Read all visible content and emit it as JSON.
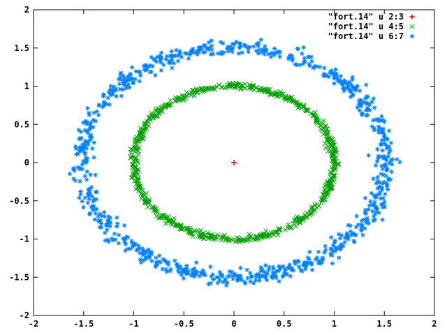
{
  "chart_data": {
    "type": "scatter",
    "xlim": [
      -2,
      2
    ],
    "ylim": [
      -2,
      2
    ],
    "grid": false,
    "legend_position": "top-right",
    "x_ticks": [
      "-2",
      "-1.5",
      "-1",
      "-0.5",
      "0",
      "0.5",
      "1",
      "1.5",
      "2"
    ],
    "y_ticks": [
      "-2",
      "-1.5",
      "-1",
      "-0.5",
      "0",
      "0.5",
      "1",
      "1.5",
      "2"
    ],
    "series": [
      {
        "name": "\"fort.14\" u 2:3",
        "marker": "plus",
        "color": "#ff0000",
        "points": [
          [
            0,
            0
          ]
        ]
      },
      {
        "name": "\"fort.14\" u 4:5",
        "marker": "cross",
        "color": "#00a000",
        "shape": "ring",
        "center": [
          0,
          0
        ],
        "radius_x": 1.0,
        "radius_y": 1.0,
        "scatter": 0.02,
        "count": 700
      },
      {
        "name": "\"fort.14\" u 6:7",
        "marker": "star",
        "color": "#0080ff",
        "shape": "ring",
        "center": [
          0,
          0
        ],
        "radius_x": 1.52,
        "radius_y": 1.5,
        "scatter": 0.05,
        "count": 900
      }
    ]
  }
}
